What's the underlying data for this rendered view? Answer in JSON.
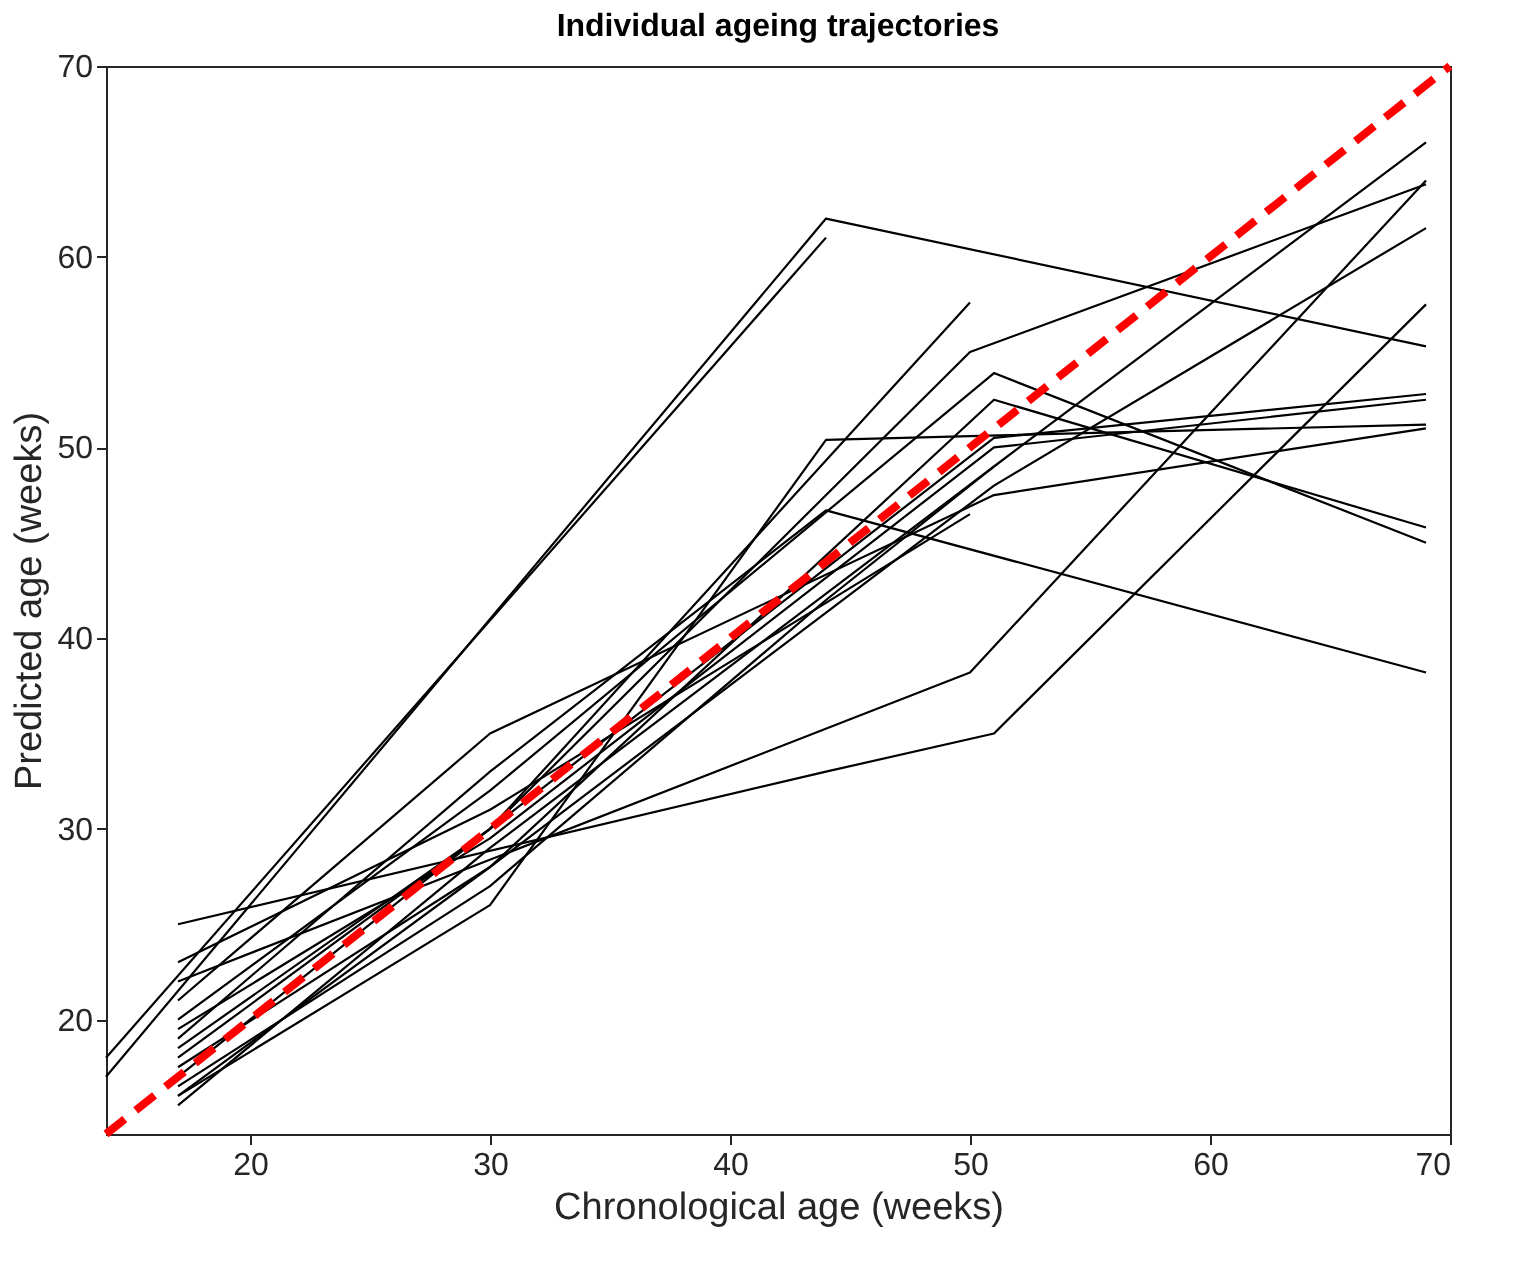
{
  "chart_data": {
    "type": "line",
    "title": "Individual ageing trajectories",
    "xlabel": "Chronological age (weeks)",
    "ylabel": "Predicted age (weeks)",
    "xlim": [
      14,
      70
    ],
    "ylim": [
      14,
      70
    ],
    "xticks": [
      20,
      30,
      40,
      50,
      60,
      70
    ],
    "yticks": [
      20,
      30,
      40,
      50,
      60,
      70
    ],
    "grid": false,
    "marker": "none",
    "series": [
      {
        "color": "#000000",
        "x": [
          14,
          44
        ],
        "values": [
          18,
          61
        ]
      },
      {
        "color": "#000000",
        "x": [
          14,
          44,
          69
        ],
        "values": [
          17,
          62,
          55.3
        ]
      },
      {
        "color": "#000000",
        "x": [
          17,
          44,
          51,
          69
        ],
        "values": [
          25,
          33,
          35,
          57.5
        ]
      },
      {
        "color": "#000000",
        "x": [
          17,
          50,
          69
        ],
        "values": [
          22,
          38.2,
          64
        ]
      },
      {
        "color": "#000000",
        "x": [
          17,
          30,
          44,
          69
        ],
        "values": [
          19,
          33,
          46.7,
          38.2
        ]
      },
      {
        "color": "#000000",
        "x": [
          17,
          30,
          44,
          69
        ],
        "values": [
          16,
          26,
          50.4,
          51.2
        ]
      },
      {
        "color": "#000000",
        "x": [
          17,
          30,
          50
        ],
        "values": [
          17,
          30,
          57.6
        ]
      },
      {
        "color": "#000000",
        "x": [
          17,
          30,
          50,
          69
        ],
        "values": [
          18,
          30,
          55,
          63.8
        ]
      },
      {
        "color": "#000000",
        "x": [
          17,
          30,
          51,
          69
        ],
        "values": [
          20,
          32,
          53.9,
          45
        ]
      },
      {
        "color": "#000000",
        "x": [
          17,
          30,
          51,
          69
        ],
        "values": [
          16,
          28,
          52.5,
          45.8
        ]
      },
      {
        "color": "#000000",
        "x": [
          17,
          30,
          51,
          69
        ],
        "values": [
          15.5,
          29,
          49,
          66
        ]
      },
      {
        "color": "#000000",
        "x": [
          17,
          30,
          51,
          69
        ],
        "values": [
          18.5,
          30,
          50.5,
          52.8
        ]
      },
      {
        "color": "#000000",
        "x": [
          17,
          30,
          51,
          69
        ],
        "values": [
          21,
          35,
          47.5,
          51
        ]
      },
      {
        "color": "#000000",
        "x": [
          17,
          30,
          50
        ],
        "values": [
          23,
          31,
          46.5
        ]
      },
      {
        "color": "#000000",
        "x": [
          17,
          30,
          51,
          69
        ],
        "values": [
          17.5,
          28,
          48,
          61.5
        ]
      },
      {
        "color": "#000000",
        "x": [
          17,
          30,
          51,
          69
        ],
        "values": [
          19.5,
          29.5,
          50,
          52.5
        ]
      },
      {
        "color": "#000000",
        "x": [
          17,
          30,
          44,
          51
        ],
        "values": [
          16.5,
          27,
          42,
          49
        ]
      },
      {
        "color": "#ff0000",
        "x": [
          14,
          70
        ],
        "values": [
          14,
          70
        ],
        "line_style": "dashed"
      }
    ]
  }
}
